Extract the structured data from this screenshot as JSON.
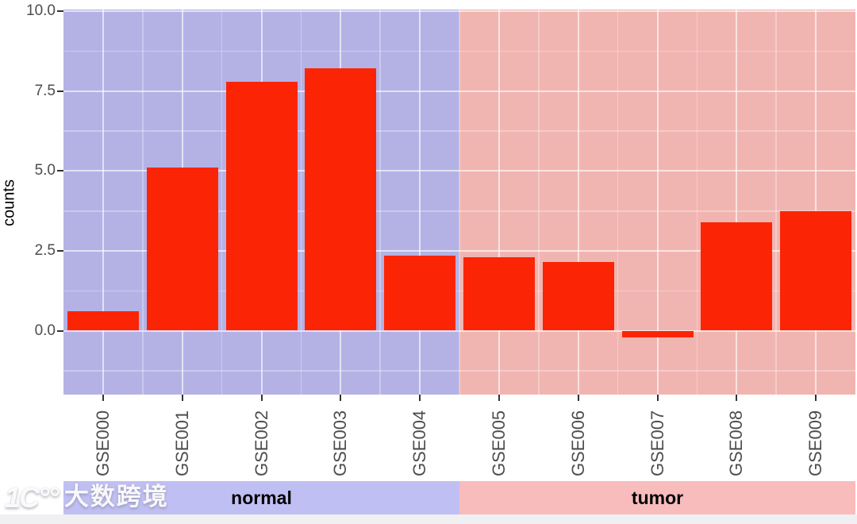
{
  "chart_data": {
    "type": "bar",
    "title": "",
    "xlabel": "",
    "ylabel": "counts",
    "categories": [
      "GSE000",
      "GSE001",
      "GSE002",
      "GSE003",
      "GSE004",
      "GSE005",
      "GSE006",
      "GSE007",
      "GSE008",
      "GSE009"
    ],
    "values": [
      0.6,
      5.1,
      7.8,
      8.2,
      2.35,
      2.3,
      2.15,
      -0.2,
      3.4,
      3.75
    ],
    "bar_color": "#fb2505",
    "ylim": [
      -2,
      10.05
    ],
    "grid": true,
    "legend_position": "none",
    "y_ticks": [
      {
        "label": "10.0",
        "value": 10
      },
      {
        "label": "7.5",
        "value": 7.5
      },
      {
        "label": "5.0",
        "value": 5
      },
      {
        "label": "2.5",
        "value": 2.5
      },
      {
        "label": "0.0",
        "value": 0
      }
    ],
    "y_minor_values": [
      8.75,
      6.25,
      3.75,
      1.25,
      -1.25
    ],
    "groups": [
      {
        "label": "normal",
        "start": 0,
        "end": 4,
        "panel_color": "#b4b2e5",
        "strip_color": "#c0bff3"
      },
      {
        "label": "tumor",
        "start": 5,
        "end": 9,
        "panel_color": "#f1b5b1",
        "strip_color": "#f8bcbc"
      }
    ]
  },
  "watermark": {
    "logo": "1C°°",
    "text": "大数跨境"
  }
}
